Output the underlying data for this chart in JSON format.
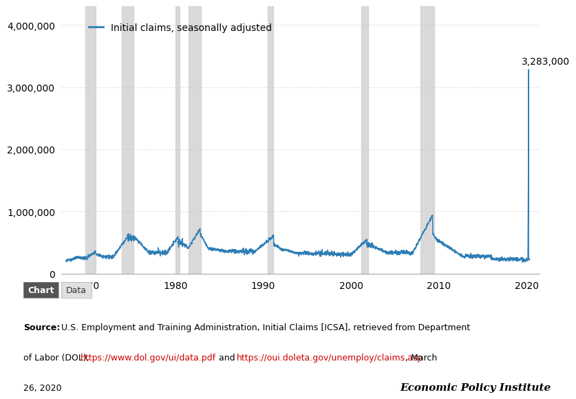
{
  "legend_label": "Initial claims, seasonally adjusted",
  "line_color": "#2e7db5",
  "line_width": 1.0,
  "recession_color": "#d3d3d3",
  "recession_alpha": 0.85,
  "recessions": [
    [
      1969.75,
      1970.92
    ],
    [
      1973.92,
      1975.25
    ],
    [
      1980.0,
      1980.5
    ],
    [
      1981.5,
      1982.92
    ],
    [
      1990.5,
      1991.17
    ],
    [
      2001.17,
      2001.92
    ],
    [
      2007.92,
      2009.5
    ]
  ],
  "peak_label": "3,283,000",
  "peak_year": 2020.22,
  "peak_value": 3283000,
  "yticks": [
    0,
    1000000,
    2000000,
    3000000,
    4000000
  ],
  "ytick_labels": [
    "0",
    "1,000,000",
    "2,000,000",
    "3,000,000",
    "4,000,000"
  ],
  "xticks": [
    1970,
    1980,
    1990,
    2000,
    2010,
    2020
  ],
  "ylim": [
    0,
    4300000
  ],
  "xlim_start": 1967.0,
  "xlim_end": 2021.5,
  "bg_color": "#ffffff",
  "grid_color": "#cccccc",
  "source_bold": "Source:",
  "source_normal": " U.S. Employment and Training Administration, Initial Claims [ICSA], retrieved from Department\nof Labor (DOL), ",
  "source_url1": "https://www.dol.gov/ui/data.pdf",
  "source_mid": " and ",
  "source_url2": "https://oui.doleta.gov/unemploy/claims.asp",
  "source_end": ", March\n26, 2020",
  "epi_label": "Economic Policy Institute",
  "chart_button": "Chart",
  "data_button": "Data",
  "annotation_fontsize": 10,
  "tick_fontsize": 10,
  "legend_fontsize": 10,
  "source_fontsize": 9,
  "epi_fontsize": 11
}
